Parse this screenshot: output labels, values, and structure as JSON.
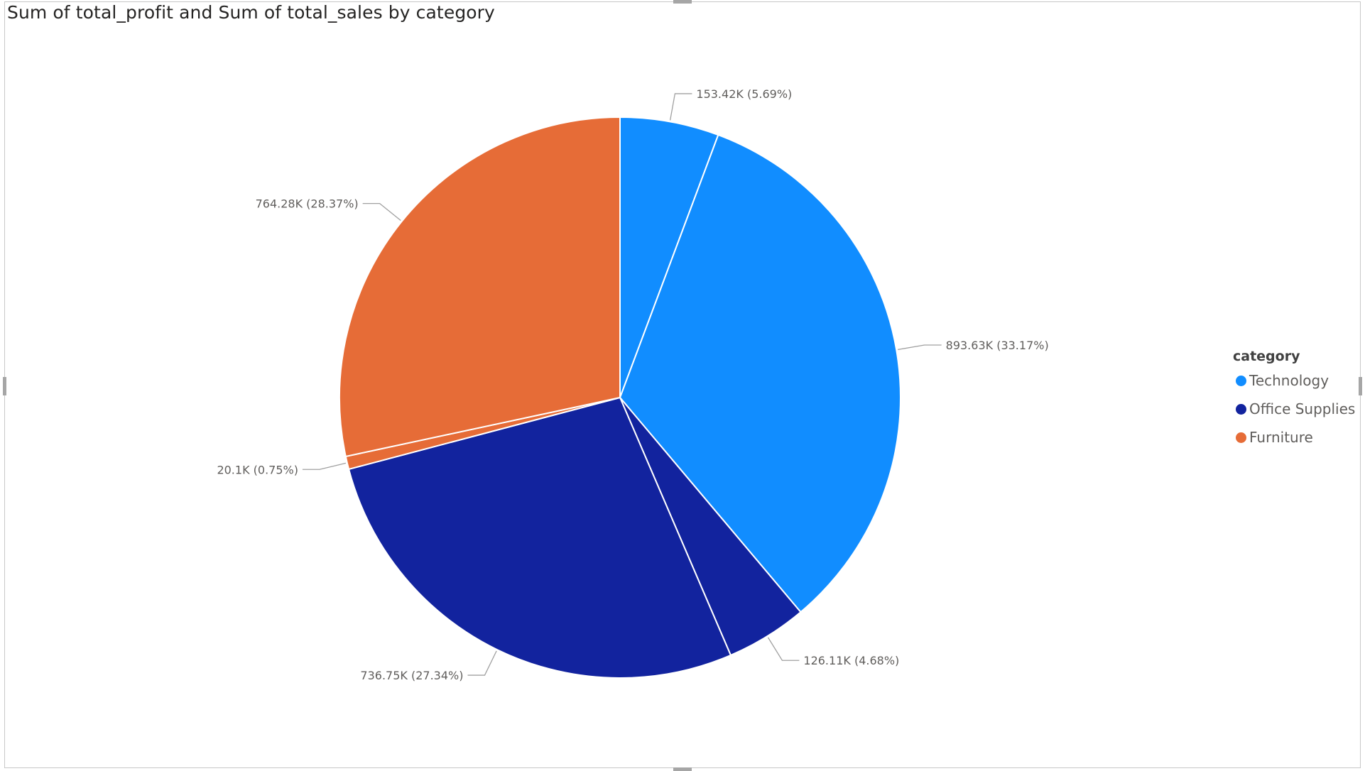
{
  "title": "Sum of total_profit and Sum of total_sales by category",
  "legend": {
    "title": "category",
    "items": [
      {
        "label": "Technology",
        "color": "#118DFF"
      },
      {
        "label": "Office Supplies",
        "color": "#12239E"
      },
      {
        "label": "Furniture",
        "color": "#E66C37"
      }
    ]
  },
  "chart_data": {
    "type": "pie",
    "title": "Sum of total_profit and Sum of total_sales by category",
    "legend_title": "category",
    "legend_position": "right",
    "slices": [
      {
        "category": "Technology",
        "measure": "Sum of total_profit",
        "value": 153.42,
        "unit": "K",
        "percent": 5.69,
        "label": "153.42K (5.69%)",
        "color": "#118DFF"
      },
      {
        "category": "Technology",
        "measure": "Sum of total_sales",
        "value": 893.63,
        "unit": "K",
        "percent": 33.17,
        "label": "893.63K (33.17%)",
        "color": "#118DFF"
      },
      {
        "category": "Office Supplies",
        "measure": "Sum of total_profit",
        "value": 126.11,
        "unit": "K",
        "percent": 4.68,
        "label": "126.11K (4.68%)",
        "color": "#12239E"
      },
      {
        "category": "Office Supplies",
        "measure": "Sum of total_sales",
        "value": 736.75,
        "unit": "K",
        "percent": 27.34,
        "label": "736.75K (27.34%)",
        "color": "#12239E"
      },
      {
        "category": "Furniture",
        "measure": "Sum of total_profit",
        "value": 20.1,
        "unit": "K",
        "percent": 0.75,
        "label": "20.1K (0.75%)",
        "color": "#E66C37"
      },
      {
        "category": "Furniture",
        "measure": "Sum of total_sales",
        "value": 764.28,
        "unit": "K",
        "percent": 28.37,
        "label": "764.28K (28.37%)",
        "color": "#E66C37"
      }
    ]
  }
}
